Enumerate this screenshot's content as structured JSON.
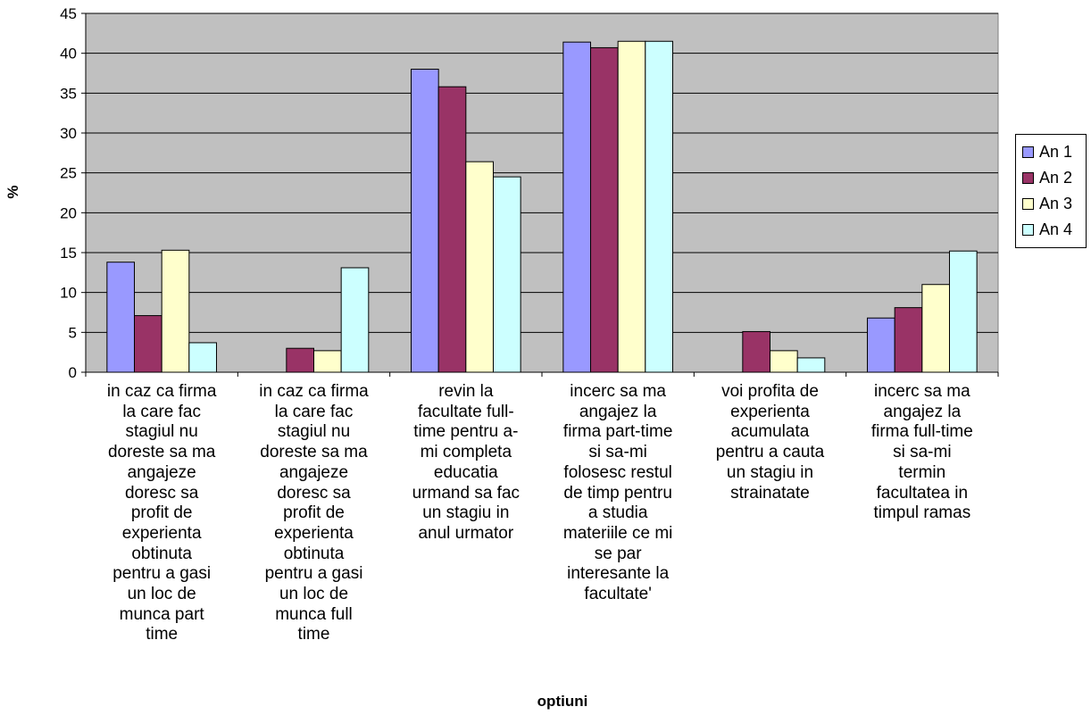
{
  "chart_data": {
    "type": "bar",
    "categories": [
      "in caz ca firma la care fac stagiul nu doreste sa ma angajeze doresc sa profit de experienta obtinuta pentru a gasi un loc de munca part time",
      "in caz ca firma la care fac stagiul nu doreste sa ma angajeze doresc sa profit de experienta obtinuta pentru a gasi un loc de munca full time",
      "revin la facultate full-time pentru a-mi completa educatia urmand sa fac un stagiu in anul urmator",
      "incerc sa ma angajez la firma part-time si sa-mi folosesc restul de timp pentru a studia materiile ce mi se par interesante la facultate'",
      "voi profita de experienta acumulata pentru a cauta un stagiu in strainatate",
      "incerc sa ma angajez la firma full-time si sa-mi termin facultatea in timpul ramas"
    ],
    "category_lines": [
      [
        "in caz ca firma",
        "la care fac",
        "stagiul nu",
        "doreste sa ma",
        "angajeze",
        "doresc sa",
        "profit de",
        "experienta",
        "obtinuta",
        "pentru a gasi",
        "un loc de",
        "munca part",
        "time"
      ],
      [
        "in caz ca firma",
        "la care fac",
        "stagiul nu",
        "doreste sa ma",
        "angajeze",
        "doresc sa",
        "profit de",
        "experienta",
        "obtinuta",
        "pentru a gasi",
        "un loc de",
        "munca full",
        "time"
      ],
      [
        "revin la",
        "facultate full-",
        "time pentru a-",
        "mi completa",
        "educatia",
        "urmand sa fac",
        "un stagiu in",
        "anul urmator"
      ],
      [
        "incerc sa ma",
        "angajez la",
        "firma part-time",
        "si sa-mi",
        "folosesc restul",
        "de timp pentru",
        "a studia",
        "materiile ce mi",
        "se par",
        "interesante la",
        "facultate'"
      ],
      [
        "voi profita de",
        "experienta",
        "acumulata",
        "pentru a cauta",
        "un stagiu in",
        "strainatate"
      ],
      [
        "incerc sa ma",
        "angajez la",
        "firma full-time",
        "si sa-mi",
        "termin",
        "facultatea in",
        "timpul ramas"
      ]
    ],
    "series": [
      {
        "name": "An 1",
        "color": "#9999ff",
        "values": [
          13.8,
          0,
          38.0,
          41.4,
          0,
          6.8
        ]
      },
      {
        "name": "An 2",
        "color": "#993366",
        "values": [
          7.1,
          3.0,
          35.8,
          40.7,
          5.1,
          8.1
        ]
      },
      {
        "name": "An 3",
        "color": "#ffffcc",
        "values": [
          15.3,
          2.7,
          26.4,
          41.5,
          2.7,
          11.0
        ]
      },
      {
        "name": "An 4",
        "color": "#ccffff",
        "values": [
          3.7,
          13.1,
          24.5,
          41.5,
          1.8,
          15.2
        ]
      }
    ],
    "xlabel": "optiuni",
    "ylabel": "%",
    "ylim": [
      0,
      45
    ],
    "yticks": [
      0,
      5,
      10,
      15,
      20,
      25,
      30,
      35,
      40,
      45
    ],
    "grid": true,
    "plot_background": "#c0c0c0",
    "legend_position": "right"
  }
}
